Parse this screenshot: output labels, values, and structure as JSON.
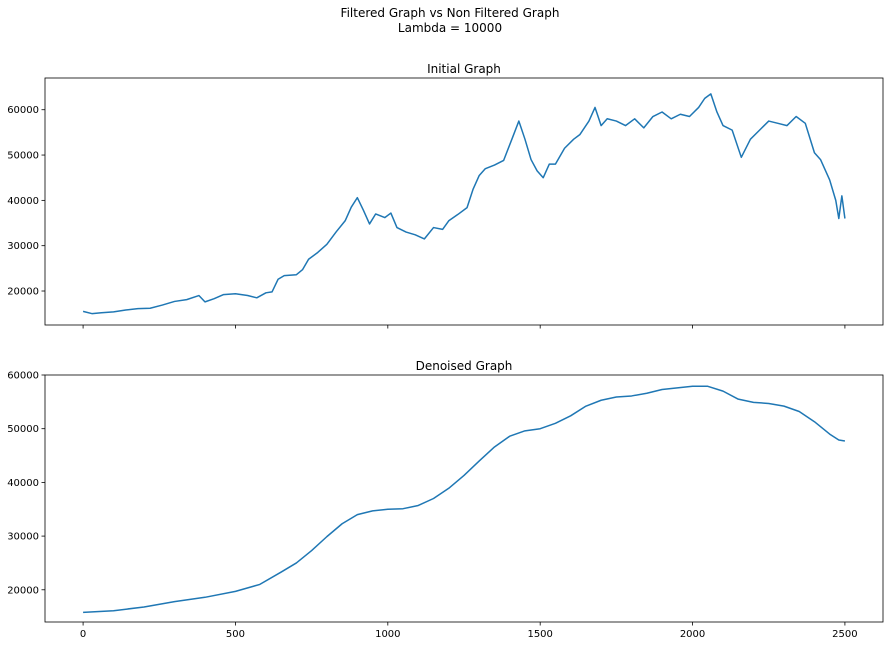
{
  "figure": {
    "suptitle_line1": "Filtered Graph vs Non Filtered Graph",
    "suptitle_line2": "Lambda = 10000"
  },
  "chart_data": [
    {
      "type": "line",
      "title": "Initial Graph",
      "xlabel": "",
      "ylabel": "",
      "xlim": [
        -125,
        2625
      ],
      "ylim": [
        12500,
        67000
      ],
      "xticks": [
        0,
        500,
        1000,
        1500,
        2000,
        2500
      ],
      "xtick_labels_visible": false,
      "yticks": [
        20000,
        30000,
        40000,
        50000,
        60000
      ],
      "grid": false,
      "color": "#1f77b4",
      "x_start": 0,
      "x_end": 2500,
      "series": [
        {
          "name": "",
          "points": [
            [
              0,
              15500
            ],
            [
              30,
              15000
            ],
            [
              60,
              15200
            ],
            [
              100,
              15400
            ],
            [
              140,
              15800
            ],
            [
              180,
              16100
            ],
            [
              220,
              16200
            ],
            [
              260,
              16900
            ],
            [
              300,
              17700
            ],
            [
              340,
              18100
            ],
            [
              380,
              19000
            ],
            [
              400,
              17600
            ],
            [
              430,
              18300
            ],
            [
              460,
              19200
            ],
            [
              500,
              19400
            ],
            [
              540,
              19000
            ],
            [
              570,
              18500
            ],
            [
              600,
              19600
            ],
            [
              620,
              19800
            ],
            [
              640,
              22600
            ],
            [
              660,
              23400
            ],
            [
              700,
              23600
            ],
            [
              720,
              24700
            ],
            [
              740,
              27000
            ],
            [
              770,
              28500
            ],
            [
              800,
              30300
            ],
            [
              830,
              33000
            ],
            [
              860,
              35500
            ],
            [
              880,
              38500
            ],
            [
              900,
              40600
            ],
            [
              920,
              37800
            ],
            [
              940,
              34800
            ],
            [
              960,
              37000
            ],
            [
              990,
              36200
            ],
            [
              1010,
              37200
            ],
            [
              1030,
              34000
            ],
            [
              1060,
              33000
            ],
            [
              1090,
              32400
            ],
            [
              1120,
              31500
            ],
            [
              1150,
              34000
            ],
            [
              1180,
              33600
            ],
            [
              1200,
              35500
            ],
            [
              1230,
              36900
            ],
            [
              1260,
              38400
            ],
            [
              1280,
              42500
            ],
            [
              1300,
              45500
            ],
            [
              1320,
              47000
            ],
            [
              1350,
              47800
            ],
            [
              1380,
              48800
            ],
            [
              1410,
              54000
            ],
            [
              1430,
              57500
            ],
            [
              1450,
              53500
            ],
            [
              1470,
              49000
            ],
            [
              1490,
              46500
            ],
            [
              1510,
              45000
            ],
            [
              1530,
              48000
            ],
            [
              1550,
              48000
            ],
            [
              1580,
              51500
            ],
            [
              1610,
              53500
            ],
            [
              1630,
              54500
            ],
            [
              1660,
              57500
            ],
            [
              1680,
              60500
            ],
            [
              1700,
              56500
            ],
            [
              1720,
              58000
            ],
            [
              1750,
              57500
            ],
            [
              1780,
              56500
            ],
            [
              1810,
              58000
            ],
            [
              1840,
              56000
            ],
            [
              1870,
              58500
            ],
            [
              1900,
              59500
            ],
            [
              1930,
              58000
            ],
            [
              1960,
              59000
            ],
            [
              1990,
              58500
            ],
            [
              2020,
              60500
            ],
            [
              2040,
              62500
            ],
            [
              2060,
              63500
            ],
            [
              2080,
              59500
            ],
            [
              2100,
              56500
            ],
            [
              2130,
              55500
            ],
            [
              2160,
              49500
            ],
            [
              2190,
              53500
            ],
            [
              2220,
              55500
            ],
            [
              2250,
              57500
            ],
            [
              2280,
              57000
            ],
            [
              2310,
              56500
            ],
            [
              2340,
              58500
            ],
            [
              2370,
              57000
            ],
            [
              2400,
              50500
            ],
            [
              2420,
              49000
            ],
            [
              2450,
              44500
            ],
            [
              2470,
              40000
            ],
            [
              2480,
              36000
            ],
            [
              2490,
              41000
            ],
            [
              2500,
              36000
            ]
          ]
        }
      ]
    },
    {
      "type": "line",
      "title": "Denoised Graph",
      "xlabel": "",
      "ylabel": "",
      "xlim": [
        -125,
        2625
      ],
      "ylim": [
        14000,
        60000
      ],
      "xticks": [
        0,
        500,
        1000,
        1500,
        2000,
        2500
      ],
      "xtick_labels_visible": true,
      "yticks": [
        20000,
        30000,
        40000,
        50000,
        60000
      ],
      "grid": false,
      "color": "#1f77b4",
      "series": [
        {
          "name": "",
          "points": [
            [
              0,
              15800
            ],
            [
              100,
              16100
            ],
            [
              200,
              16800
            ],
            [
              300,
              17800
            ],
            [
              400,
              18600
            ],
            [
              500,
              19700
            ],
            [
              580,
              21000
            ],
            [
              650,
              23300
            ],
            [
              700,
              25000
            ],
            [
              750,
              27300
            ],
            [
              800,
              29900
            ],
            [
              850,
              32300
            ],
            [
              900,
              34000
            ],
            [
              950,
              34700
            ],
            [
              1000,
              35000
            ],
            [
              1050,
              35100
            ],
            [
              1100,
              35700
            ],
            [
              1150,
              37000
            ],
            [
              1200,
              38900
            ],
            [
              1250,
              41300
            ],
            [
              1300,
              44000
            ],
            [
              1350,
              46600
            ],
            [
              1400,
              48600
            ],
            [
              1450,
              49600
            ],
            [
              1500,
              50000
            ],
            [
              1550,
              51000
            ],
            [
              1600,
              52400
            ],
            [
              1650,
              54200
            ],
            [
              1700,
              55300
            ],
            [
              1750,
              55900
            ],
            [
              1800,
              56100
            ],
            [
              1850,
              56600
            ],
            [
              1900,
              57300
            ],
            [
              1950,
              57600
            ],
            [
              2000,
              57900
            ],
            [
              2050,
              57900
            ],
            [
              2100,
              57000
            ],
            [
              2150,
              55500
            ],
            [
              2200,
              54900
            ],
            [
              2250,
              54700
            ],
            [
              2300,
              54200
            ],
            [
              2350,
              53200
            ],
            [
              2400,
              51300
            ],
            [
              2450,
              49000
            ],
            [
              2480,
              47900
            ],
            [
              2500,
              47700
            ]
          ]
        }
      ]
    }
  ]
}
